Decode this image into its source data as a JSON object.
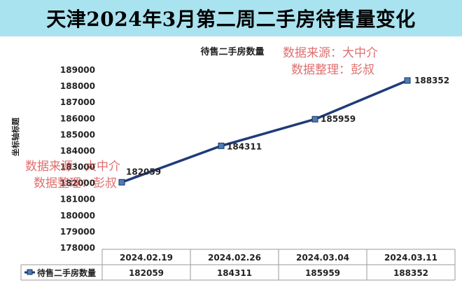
{
  "header": {
    "title": "天津2024年3月第二周二手房待售量变化"
  },
  "watermarks": [
    {
      "line1": "数据来源：大中介",
      "line2": "数据整理：彭叔"
    },
    {
      "line1": "数据来源：大中介",
      "line2": "数据整理：彭叔"
    }
  ],
  "chart_data": {
    "type": "line",
    "title": "待售二手房数量",
    "ylabel": "坐标轴标题",
    "xlabel": "",
    "categories": [
      "2024.02.19",
      "2024.02.26",
      "2024.03.04",
      "2024.03.11"
    ],
    "series": [
      {
        "name": "待售二手房数量",
        "values": [
          182059,
          184311,
          185959,
          188352
        ],
        "color": "#1f3b7a"
      }
    ],
    "ylim": [
      178000,
      189000
    ],
    "yticks": [
      "178000",
      "179000",
      "180000",
      "181000",
      "182000",
      "183000",
      "184000",
      "185000",
      "186000",
      "187000",
      "188000",
      "189000"
    ],
    "data_labels": [
      "182059",
      "184311",
      "185959",
      "188352"
    ],
    "grid": false,
    "data_table": true,
    "legend": "in data table"
  },
  "colors": {
    "title_bg": "#a9e3ef",
    "line": "#1f3b7a",
    "marker_fill": "#4a7fb5",
    "watermark": "#d64646"
  }
}
